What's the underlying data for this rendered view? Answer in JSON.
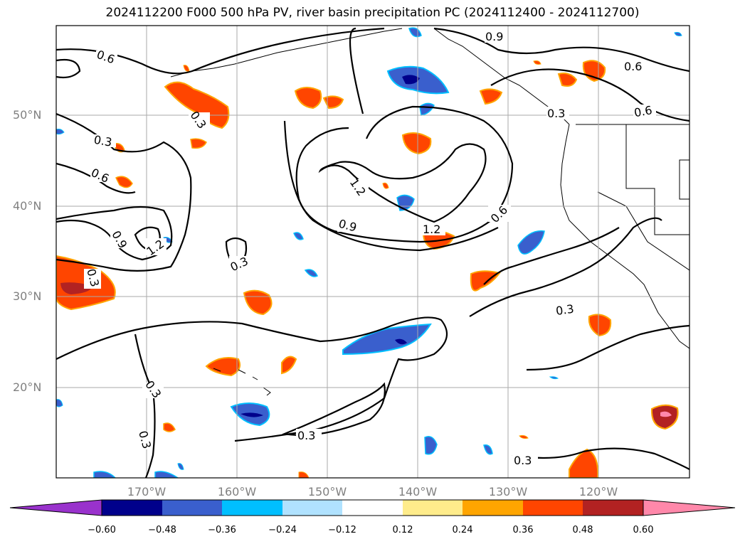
{
  "title": "2024112200 F000 500 hPa PV, river basin precipitation PC (2024112400 - 2024112700)",
  "lat_labels": [
    "50°N",
    "40°N",
    "30°N",
    "20°N"
  ],
  "lon_labels": [
    "170°W",
    "160°W",
    "150°W",
    "140°W",
    "130°W",
    "120°W"
  ],
  "contour_labels": [
    "0.9",
    "0.6",
    "0.6",
    "0.3",
    "0.6",
    "0.3",
    "0.3",
    "0.6",
    "1.2",
    "0.9",
    "1.2",
    "0.6",
    "0.9",
    "1.2",
    "0.3",
    "0.3",
    "0.3",
    "0.3",
    "0.3",
    "0.3",
    "0.3"
  ],
  "colorbar": {
    "tick_labels": [
      "−0.60",
      "−0.48",
      "−0.36",
      "−0.24",
      "−0.12",
      "0.12",
      "0.24",
      "0.36",
      "0.48",
      "0.60"
    ],
    "under_color": "#9932cc",
    "over_color": "#ff88aa",
    "colors": [
      "#00008b",
      "#3a5fcd",
      "#00bfff",
      "#b0e2ff",
      "#ffffff",
      "#ffec8b",
      "#ffa500",
      "#ff4500",
      "#b22222",
      "#ff88aa"
    ]
  }
}
